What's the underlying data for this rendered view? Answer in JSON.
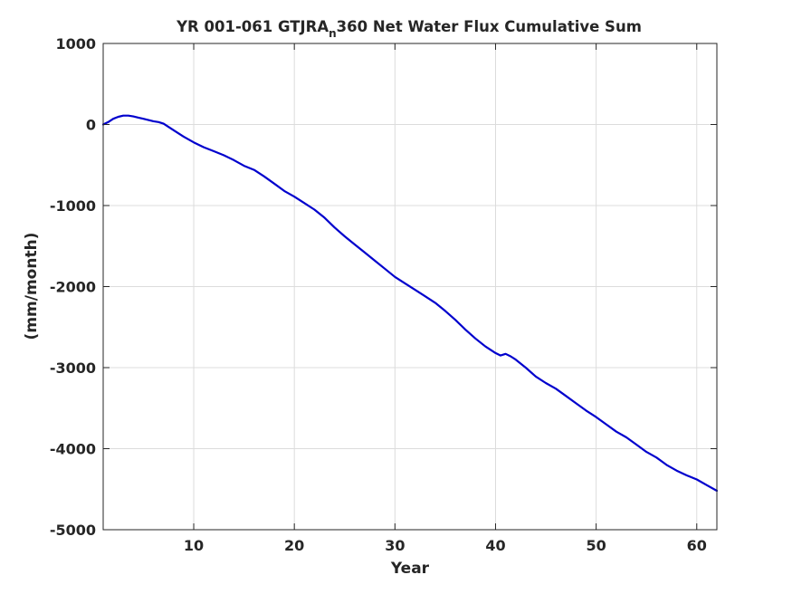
{
  "chart_data": {
    "type": "line",
    "title": {
      "before": "YR 001-061 GTJRA",
      "subscript": "n",
      "after": "360 Net Water Flux Cumulative Sum"
    },
    "xlabel": "Year",
    "ylabel": "(mm/month)",
    "xlim": [
      1,
      62
    ],
    "ylim": [
      -5000,
      1000
    ],
    "xticks": [
      10,
      20,
      30,
      40,
      50,
      60
    ],
    "yticks": [
      1000,
      0,
      -1000,
      -2000,
      -3000,
      -4000,
      -5000
    ],
    "grid": true,
    "line_color": "#0000cd",
    "series": [
      {
        "x": [
          1,
          1.5,
          2,
          2.5,
          3,
          3.5,
          4,
          4.5,
          5,
          5.5,
          6,
          6.5,
          7,
          8,
          9,
          10,
          11,
          12,
          13,
          14,
          15,
          16,
          17,
          18,
          19,
          20,
          21,
          22,
          23,
          24,
          25,
          26,
          27,
          28,
          29,
          30,
          31,
          32,
          33,
          34,
          35,
          36,
          37,
          38,
          39,
          40,
          40.5,
          41,
          41.5,
          42,
          43,
          44,
          45,
          46,
          47,
          48,
          49,
          50,
          51,
          52,
          53,
          54,
          55,
          56,
          57,
          58,
          59,
          60,
          61,
          62
        ],
        "y": [
          0,
          30,
          70,
          95,
          110,
          110,
          100,
          85,
          70,
          55,
          40,
          30,
          10,
          -70,
          -150,
          -220,
          -280,
          -330,
          -380,
          -440,
          -510,
          -560,
          -640,
          -730,
          -820,
          -890,
          -970,
          -1050,
          -1150,
          -1270,
          -1380,
          -1480,
          -1580,
          -1680,
          -1780,
          -1880,
          -1960,
          -2040,
          -2120,
          -2200,
          -2300,
          -2410,
          -2530,
          -2640,
          -2740,
          -2820,
          -2850,
          -2830,
          -2860,
          -2900,
          -3000,
          -3110,
          -3190,
          -3260,
          -3350,
          -3440,
          -3530,
          -3610,
          -3700,
          -3790,
          -3860,
          -3950,
          -4040,
          -4110,
          -4200,
          -4270,
          -4330,
          -4380,
          -4450,
          -4520
        ]
      }
    ]
  }
}
